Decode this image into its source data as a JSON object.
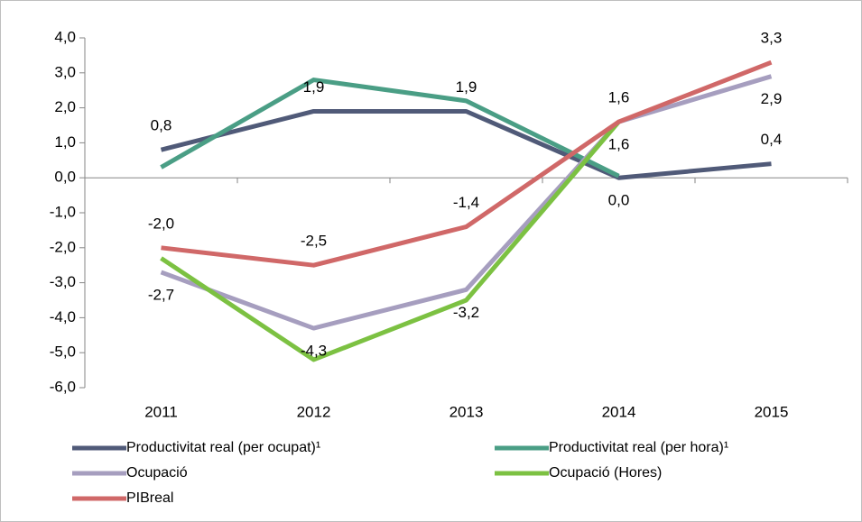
{
  "chart_data": {
    "type": "line",
    "categories": [
      "2011",
      "2012",
      "2013",
      "2014",
      "2015"
    ],
    "series": [
      {
        "name": "Productivitat real (per ocupat)¹",
        "color": "#505a78",
        "values": [
          0.8,
          1.9,
          1.9,
          0.0,
          0.4
        ],
        "value_labels": [
          "0,8",
          "1,9",
          "1,9",
          "0,0",
          "0,4"
        ]
      },
      {
        "name": "Productivitat real (per hora)¹",
        "color": "#4a9e85",
        "values": [
          0.3,
          2.8,
          2.2,
          0.05,
          null
        ]
      },
      {
        "name": "Ocupació",
        "color": "#a69ebf",
        "values": [
          -2.7,
          -4.3,
          -3.2,
          1.6,
          2.9
        ],
        "value_labels": [
          "-2,7",
          "-4,3",
          "-3,2",
          "1,6",
          "2,9"
        ]
      },
      {
        "name": "Ocupació (Hores)",
        "color": "#7cc142",
        "values": [
          -2.3,
          -5.2,
          -3.5,
          1.6,
          null
        ]
      },
      {
        "name": "PIBreal",
        "color": "#d06868",
        "values": [
          -2.0,
          -2.5,
          -1.4,
          1.6,
          3.3
        ],
        "value_labels": [
          "-2,0",
          "-2,5",
          "-1,4",
          "1,6",
          "3,3"
        ]
      }
    ],
    "ylim": [
      -6,
      4
    ],
    "yticks": [
      {
        "value": -6,
        "label": "-6,0"
      },
      {
        "value": -5,
        "label": "-5,0"
      },
      {
        "value": -4,
        "label": "-4,0"
      },
      {
        "value": -3,
        "label": "-3,0"
      },
      {
        "value": -2,
        "label": "-2,0"
      },
      {
        "value": -1,
        "label": "-1,0"
      },
      {
        "value": 0,
        "label": "0,0"
      },
      {
        "value": 1,
        "label": "1,0"
      },
      {
        "value": 2,
        "label": "2,0"
      },
      {
        "value": 3,
        "label": "3,0"
      },
      {
        "value": 4,
        "label": "4,0"
      }
    ],
    "legend": "bottom"
  }
}
